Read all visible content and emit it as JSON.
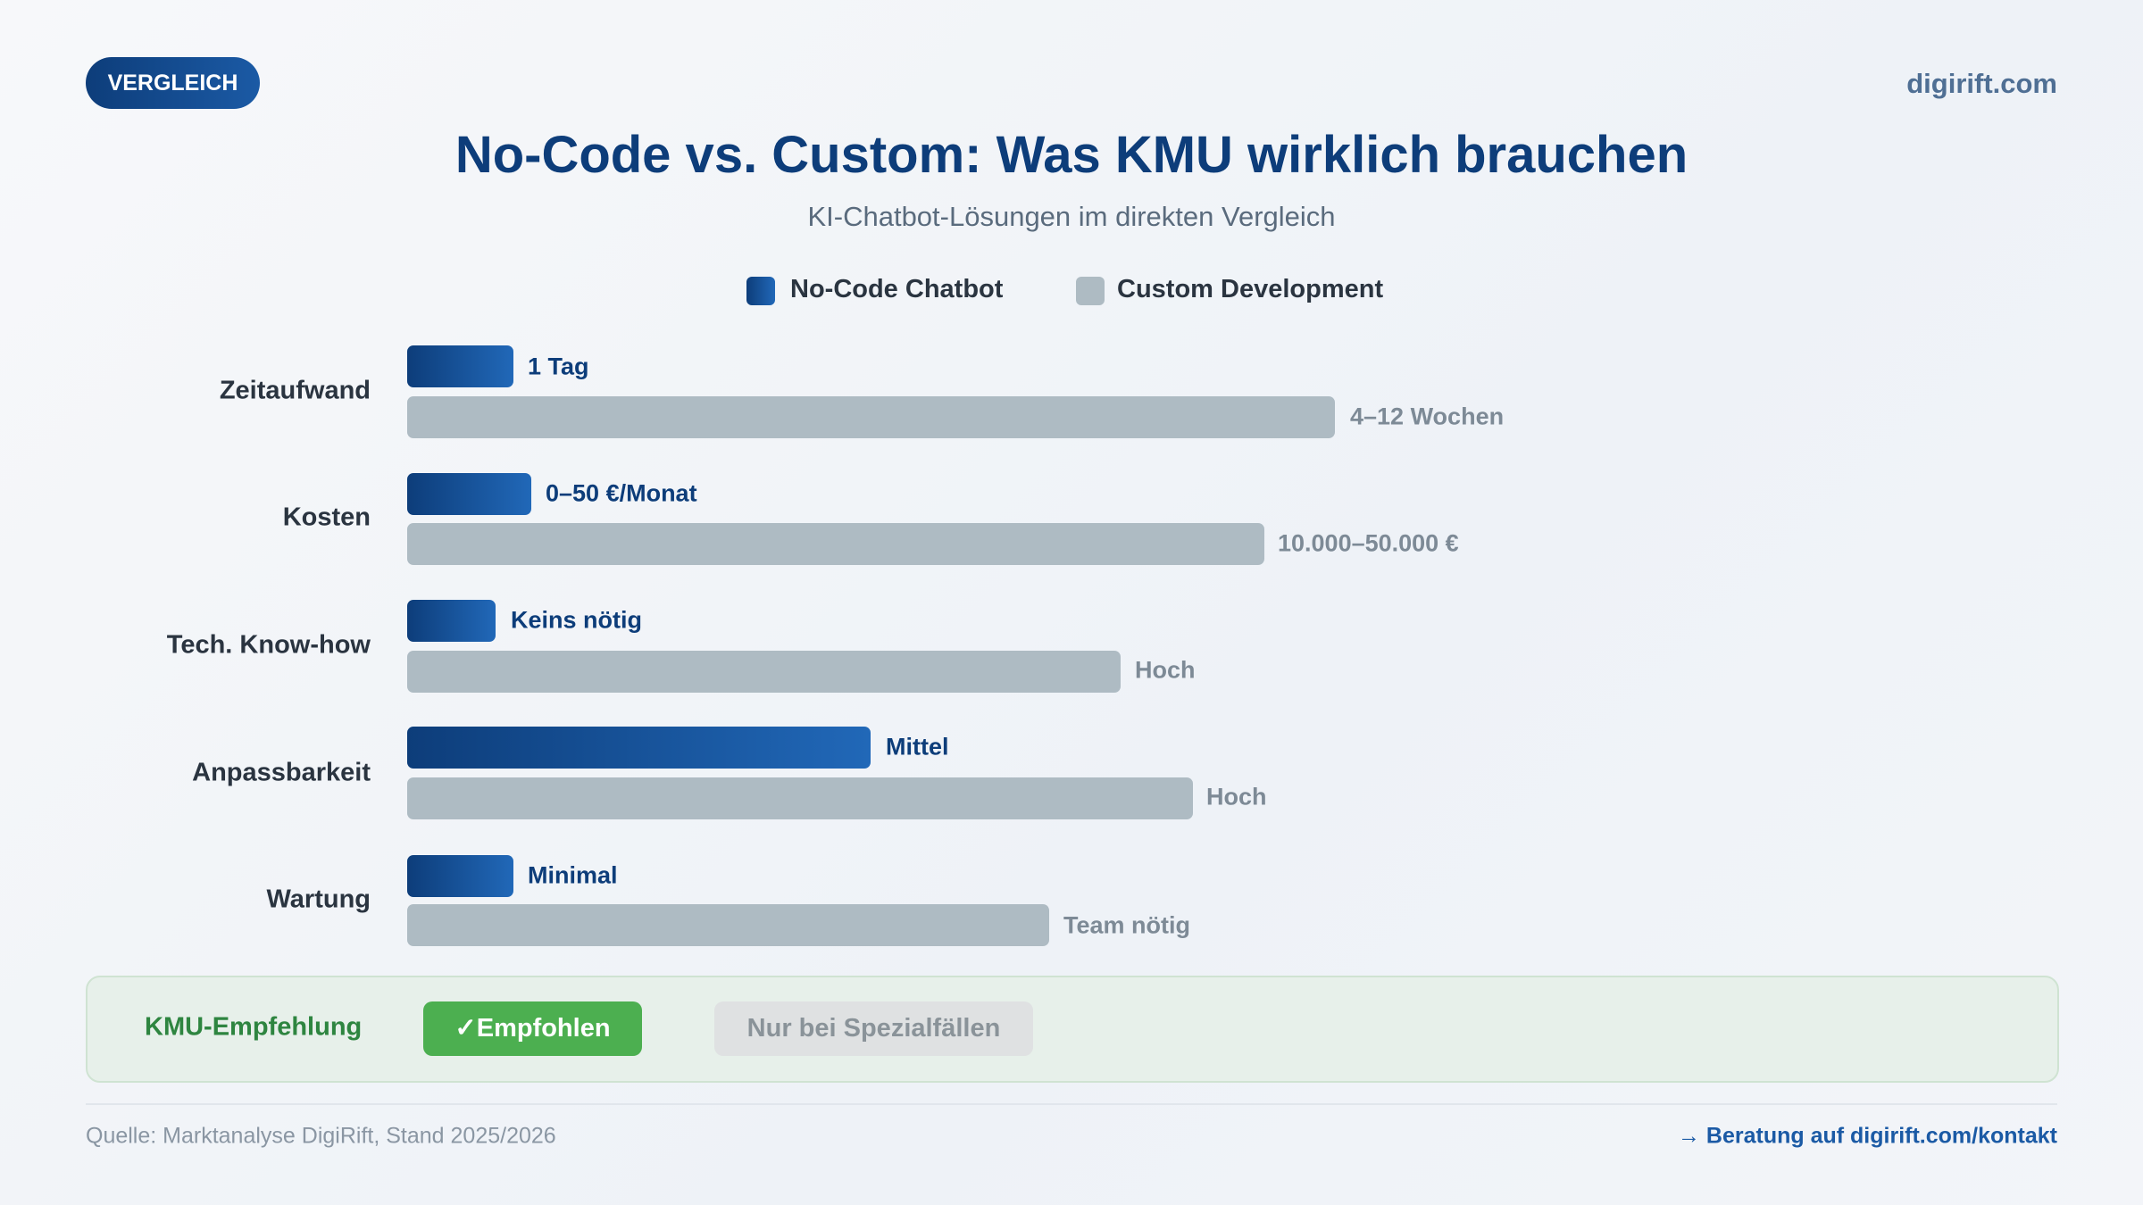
{
  "badge": "VERGLEICH",
  "site": "digirift.com",
  "title": "No-Code vs. Custom: Was KMU wirklich brauchen",
  "subtitle": "KI-Chatbot-Lösungen im direkten Vergleich",
  "legend": [
    "No-Code Chatbot",
    "Custom Development"
  ],
  "rows": [
    {
      "label": "Zeitaufwand",
      "no_code": "1 Tag",
      "custom": "4–12 Wochen"
    },
    {
      "label": "Kosten",
      "no_code": "0–50 €/Monat",
      "custom": "10.000–50.000 €"
    },
    {
      "label": "Tech. Know-how",
      "no_code": "Keins nötig",
      "custom": "Hoch"
    },
    {
      "label": "Anpassbarkeit",
      "no_code": "Mittel",
      "custom": "Hoch"
    },
    {
      "label": "Wartung",
      "no_code": "Minimal",
      "custom": "Team nötig"
    }
  ],
  "recommendation": {
    "label": "KMU-Empfehlung",
    "no_code": "✓Empfohlen",
    "custom": "Nur bei Spezialfällen"
  },
  "footer": {
    "source": "Quelle: Marktanalyse DigiRift, Stand 2025/2026",
    "link": "→ Beratung auf digirift.com/kontakt"
  }
}
